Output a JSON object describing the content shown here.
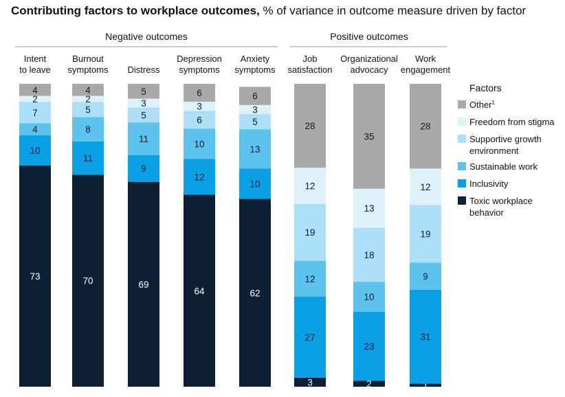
{
  "title": {
    "bold": "Contributing factors to workplace outcomes,",
    "rest": "% of variance in outcome measure driven by factor"
  },
  "chart_data": {
    "type": "bar",
    "stacked": true,
    "title": "Contributing factors to workplace outcomes, % of variance in outcome measure driven by factor",
    "groups": [
      {
        "label": "Negative outcomes",
        "categories": [
          0,
          1,
          2,
          3,
          4
        ]
      },
      {
        "label": "Positive outcomes",
        "categories": [
          5,
          6,
          7
        ]
      }
    ],
    "categories": [
      [
        "Intent",
        "to leave"
      ],
      [
        "Burnout",
        "symptoms"
      ],
      [
        "Distress"
      ],
      [
        "Depression",
        "symptoms"
      ],
      [
        "Anxiety",
        "symptoms"
      ],
      [
        "Job",
        "satisfaction"
      ],
      [
        "Organizational",
        "advocacy"
      ],
      [
        "Work",
        "engagement"
      ]
    ],
    "legend_title": "Factors",
    "legend_position": "right",
    "series": [
      {
        "name": "Toxic workplace behavior",
        "legend_lines": [
          "Toxic workplace",
          "behavior"
        ],
        "color": "#0c1f33",
        "label_color": "#ffffff",
        "values": [
          73,
          70,
          69,
          64,
          62,
          3,
          2,
          1
        ]
      },
      {
        "name": "Inclusivity",
        "legend_lines": [
          "Inclusivity"
        ],
        "color": "#0aa0e6",
        "label_color": "#0b1a2e",
        "values": [
          10,
          11,
          9,
          12,
          10,
          27,
          23,
          31
        ]
      },
      {
        "name": "Sustainable work",
        "legend_lines": [
          "Sustainable work"
        ],
        "color": "#5bc3ee",
        "label_color": "#0b1a2e",
        "values": [
          4,
          8,
          11,
          10,
          13,
          12,
          10,
          9
        ]
      },
      {
        "name": "Supportive growth environment",
        "legend_lines": [
          "Supportive growth",
          "environment"
        ],
        "color": "#abe0f8",
        "label_color": "#0b1a2e",
        "values": [
          7,
          5,
          5,
          6,
          5,
          19,
          18,
          19
        ]
      },
      {
        "name": "Freedom from stigma",
        "legend_lines": [
          "Freedom from stigma"
        ],
        "color": "#def2fc",
        "label_color": "#0b1a2e",
        "values": [
          2,
          2,
          3,
          3,
          3,
          12,
          13,
          12
        ]
      },
      {
        "name": "Other¹",
        "legend_lines": [
          "Other"
        ],
        "legend_sup": "1",
        "color": "#a9a9a9",
        "label_color": "#0b1a2e",
        "values": [
          4,
          4,
          5,
          6,
          6,
          28,
          35,
          28
        ]
      }
    ],
    "legend_order": [
      5,
      4,
      3,
      2,
      1,
      0
    ],
    "ylim": [
      0,
      100
    ]
  }
}
